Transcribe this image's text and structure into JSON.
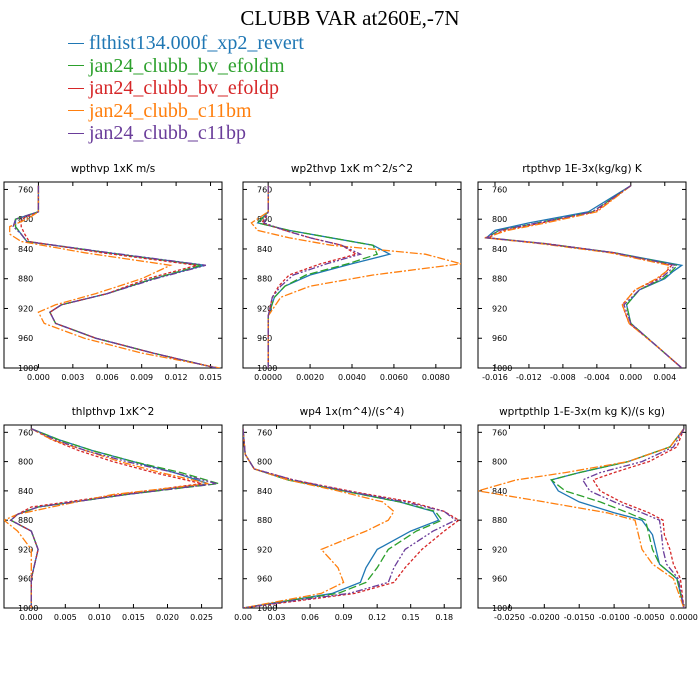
{
  "title": "CLUBB VAR at260E,-7N",
  "legend": [
    {
      "label": "flthist134.000f_xp2_revert",
      "color": "#1f77b4",
      "dash": "none"
    },
    {
      "label": "jan24_clubb_bv_efoldm",
      "color": "#2ca02c",
      "dash": "8,3"
    },
    {
      "label": "jan24_clubb_bv_efoldp",
      "color": "#d62728",
      "dash": "3,2"
    },
    {
      "label": "jan24_clubb_c11bm",
      "color": "#ff7f0e",
      "dash": "8,2,2,2"
    },
    {
      "label": "jan24_clubb_c11bp",
      "color": "#6a3d9a",
      "dash": "7,2,2,2,2,2"
    }
  ],
  "chart_data": [
    {
      "type": "line",
      "title": "wpthvp  1xK m/s",
      "xlim": [
        -0.003,
        0.016
      ],
      "ylim": [
        1000,
        750
      ],
      "xticks": [
        0.0,
        0.003,
        0.006,
        0.009,
        0.012,
        0.015
      ],
      "xticklabels": [
        "0.000",
        "0.003",
        "0.006",
        "0.009",
        "0.012",
        "0.015"
      ],
      "yticks": [
        760,
        800,
        840,
        880,
        920,
        960,
        1000
      ],
      "y": [
        755,
        790,
        800,
        810,
        820,
        830,
        845,
        862,
        880,
        900,
        915,
        925,
        940,
        960,
        980,
        1000
      ],
      "series": [
        {
          "name": "flthist134.000f_xp2_revert",
          "values": [
            0.0,
            0.0,
            -0.002,
            -0.002,
            -0.0015,
            -0.001,
            0.006,
            0.0145,
            0.01,
            0.006,
            0.002,
            0.001,
            0.0015,
            0.005,
            0.01,
            0.0155
          ]
        },
        {
          "name": "jan24_clubb_bv_efoldm",
          "values": [
            0.0,
            0.0,
            -0.002,
            -0.002,
            -0.0015,
            -0.001,
            0.006,
            0.0142,
            0.01,
            0.006,
            0.002,
            0.001,
            0.0015,
            0.005,
            0.01,
            0.0155
          ]
        },
        {
          "name": "jan24_clubb_bv_efoldp",
          "values": [
            0.0,
            0.0,
            -0.0015,
            -0.0015,
            -0.0012,
            -0.0008,
            0.0055,
            0.0138,
            0.0095,
            0.006,
            0.002,
            0.001,
            0.0015,
            0.005,
            0.01,
            0.0155
          ]
        },
        {
          "name": "jan24_clubb_c11bm",
          "values": [
            0.0,
            0.0,
            -0.001,
            -0.0025,
            -0.0025,
            -0.0015,
            0.004,
            0.0115,
            0.009,
            0.005,
            0.0015,
            0.0,
            0.0005,
            0.004,
            0.009,
            0.0158
          ]
        },
        {
          "name": "jan24_clubb_c11bp",
          "values": [
            0.0,
            0.0,
            -0.002,
            -0.0022,
            -0.0015,
            -0.001,
            0.0062,
            0.0146,
            0.0102,
            0.006,
            0.002,
            0.001,
            0.0015,
            0.005,
            0.01,
            0.0155
          ]
        }
      ]
    },
    {
      "type": "line",
      "title": "wp2thvp  1xK m^2/s^2",
      "xlim": [
        -0.0012,
        0.0092
      ],
      "ylim": [
        1000,
        750
      ],
      "xticks": [
        0.0,
        0.002,
        0.004,
        0.006,
        0.008
      ],
      "xticklabels": [
        "0.0000",
        "0.0020",
        "0.0040",
        "0.0060",
        "0.0080"
      ],
      "yticks": [
        760,
        800,
        840,
        880,
        920,
        960,
        1000
      ],
      "y": [
        755,
        790,
        805,
        815,
        825,
        835,
        847,
        860,
        875,
        890,
        905,
        930,
        960,
        1000
      ],
      "series": [
        {
          "name": "flthist134.000f_xp2_revert",
          "values": [
            0.0,
            0.0,
            -0.0005,
            0.001,
            0.003,
            0.005,
            0.0058,
            0.004,
            0.002,
            0.0008,
            0.0003,
            0.0,
            0.0,
            0.0
          ]
        },
        {
          "name": "jan24_clubb_bv_efoldm",
          "values": [
            0.0,
            0.0,
            -0.0005,
            0.001,
            0.003,
            0.005,
            0.0052,
            0.0038,
            0.0018,
            0.0008,
            0.0003,
            0.0,
            0.0,
            0.0
          ]
        },
        {
          "name": "jan24_clubb_bv_efoldp",
          "values": [
            0.0,
            0.0,
            -0.0003,
            0.0008,
            0.002,
            0.0035,
            0.0042,
            0.0025,
            0.001,
            0.0005,
            0.0002,
            0.0,
            0.0,
            0.0
          ]
        },
        {
          "name": "jan24_clubb_c11bm",
          "values": [
            0.0,
            0.0,
            -0.0008,
            -0.0005,
            0.001,
            0.003,
            0.0075,
            0.0092,
            0.005,
            0.002,
            0.0006,
            0.0,
            0.0,
            0.0
          ]
        },
        {
          "name": "jan24_clubb_c11bp",
          "values": [
            0.0,
            0.0,
            -0.0002,
            0.0008,
            0.002,
            0.0035,
            0.0044,
            0.0028,
            0.0012,
            0.0006,
            0.0002,
            0.0,
            0.0,
            0.0
          ]
        }
      ]
    },
    {
      "type": "line",
      "title": "rtpthvp  1E-3x(kg/kg) K",
      "xlim": [
        -0.018,
        0.0065
      ],
      "ylim": [
        1000,
        750
      ],
      "xticks": [
        -0.016,
        -0.012,
        -0.008,
        -0.004,
        0.0,
        0.004
      ],
      "xticklabels": [
        "-0.016",
        "-0.012",
        "-0.008",
        "-0.004",
        "0.000",
        "0.004"
      ],
      "yticks": [
        760,
        800,
        840,
        880,
        920,
        960,
        1000
      ],
      "y": [
        755,
        790,
        805,
        815,
        825,
        833,
        845,
        862,
        870,
        880,
        895,
        915,
        940,
        970,
        1000
      ],
      "series": [
        {
          "name": "flthist134.000f_xp2_revert",
          "values": [
            0.0,
            -0.005,
            -0.012,
            -0.016,
            -0.017,
            -0.01,
            -0.002,
            0.006,
            0.005,
            0.004,
            0.001,
            -0.0005,
            0.0,
            0.003,
            0.006
          ]
        },
        {
          "name": "jan24_clubb_bv_efoldm",
          "values": [
            0.0,
            -0.0045,
            -0.011,
            -0.0155,
            -0.017,
            -0.01,
            -0.002,
            0.0055,
            0.0048,
            0.0038,
            0.001,
            -0.0005,
            0.0,
            0.003,
            0.006
          ]
        },
        {
          "name": "jan24_clubb_bv_efoldp",
          "values": [
            0.0,
            -0.0042,
            -0.0105,
            -0.015,
            -0.0168,
            -0.0098,
            -0.002,
            0.0048,
            0.0042,
            0.0032,
            0.0005,
            -0.001,
            -0.0002,
            0.003,
            0.006
          ]
        },
        {
          "name": "jan24_clubb_c11bm",
          "values": [
            0.0,
            -0.004,
            -0.01,
            -0.0145,
            -0.0172,
            -0.0105,
            -0.0025,
            0.0045,
            0.0042,
            0.003,
            0.0005,
            -0.001,
            -0.0002,
            0.003,
            0.006
          ]
        },
        {
          "name": "jan24_clubb_c11bp",
          "values": [
            0.0,
            -0.0045,
            -0.011,
            -0.0155,
            -0.017,
            -0.01,
            -0.002,
            0.0052,
            0.0045,
            0.0035,
            0.001,
            -0.0008,
            0.0,
            0.003,
            0.006
          ]
        }
      ]
    },
    {
      "type": "line",
      "title": "thlpthvp  1xK^2",
      "xlim": [
        -0.004,
        0.028
      ],
      "ylim": [
        1000,
        750
      ],
      "xticks": [
        0.0,
        0.005,
        0.01,
        0.015,
        0.02,
        0.025
      ],
      "xticklabels": [
        "0.000",
        "0.005",
        "0.010",
        "0.015",
        "0.020",
        "0.025"
      ],
      "yticks": [
        760,
        800,
        840,
        880,
        920,
        960,
        1000
      ],
      "y": [
        755,
        770,
        785,
        800,
        815,
        830,
        845,
        862,
        872,
        880,
        895,
        920,
        960,
        1000
      ],
      "series": [
        {
          "name": "flthist134.000f_xp2_revert",
          "values": [
            0.0,
            0.004,
            0.009,
            0.015,
            0.021,
            0.026,
            0.014,
            0.001,
            -0.002,
            -0.003,
            0.0,
            0.001,
            0.0,
            0.0
          ]
        },
        {
          "name": "jan24_clubb_bv_efoldm",
          "values": [
            0.0,
            0.004,
            0.009,
            0.015,
            0.022,
            0.0275,
            0.014,
            0.001,
            -0.002,
            -0.003,
            0.0,
            0.001,
            0.0,
            0.0
          ]
        },
        {
          "name": "jan24_clubb_bv_efoldp",
          "values": [
            0.0,
            0.003,
            0.007,
            0.012,
            0.018,
            0.025,
            0.013,
            0.0,
            -0.002,
            -0.003,
            0.0,
            0.001,
            0.0,
            0.0
          ]
        },
        {
          "name": "jan24_clubb_c11bm",
          "values": [
            0.0,
            0.003,
            0.008,
            0.013,
            0.019,
            0.026,
            0.012,
            0.003,
            -0.002,
            -0.004,
            -0.002,
            0.0,
            0.0,
            0.0
          ]
        },
        {
          "name": "jan24_clubb_c11bp",
          "values": [
            0.0,
            0.0035,
            0.008,
            0.014,
            0.021,
            0.0272,
            0.014,
            0.001,
            -0.002,
            -0.003,
            0.0,
            0.001,
            0.0,
            0.0
          ]
        }
      ]
    },
    {
      "type": "line",
      "title": "wp4  1x(m^4)/(s^4)",
      "xlim": [
        0.0,
        0.195
      ],
      "ylim": [
        1000,
        750
      ],
      "xticks": [
        0.0,
        0.03,
        0.06,
        0.09,
        0.12,
        0.15,
        0.18
      ],
      "xticklabels": [
        "0.00",
        "0.03",
        "0.06",
        "0.09",
        "0.12",
        "0.15",
        "0.18"
      ],
      "yticks": [
        760,
        800,
        840,
        880,
        920,
        960,
        1000
      ],
      "y": [
        755,
        790,
        810,
        825,
        840,
        855,
        868,
        880,
        895,
        920,
        945,
        965,
        980,
        990,
        1000
      ],
      "series": [
        {
          "name": "flthist134.000f_xp2_revert",
          "values": [
            0.0,
            0.002,
            0.01,
            0.04,
            0.09,
            0.14,
            0.17,
            0.175,
            0.15,
            0.12,
            0.11,
            0.105,
            0.08,
            0.04,
            0.0
          ]
        },
        {
          "name": "jan24_clubb_bv_efoldm",
          "values": [
            0.0,
            0.002,
            0.01,
            0.04,
            0.09,
            0.14,
            0.172,
            0.178,
            0.155,
            0.13,
            0.12,
            0.11,
            0.085,
            0.04,
            0.0
          ]
        },
        {
          "name": "jan24_clubb_bv_efoldp",
          "values": [
            0.0,
            0.002,
            0.01,
            0.045,
            0.095,
            0.15,
            0.18,
            0.193,
            0.18,
            0.16,
            0.145,
            0.135,
            0.1,
            0.05,
            0.0
          ]
        },
        {
          "name": "jan24_clubb_c11bm",
          "values": [
            0.0,
            0.002,
            0.01,
            0.04,
            0.085,
            0.125,
            0.135,
            0.13,
            0.11,
            0.07,
            0.085,
            0.09,
            0.07,
            0.035,
            0.0
          ]
        },
        {
          "name": "jan24_clubb_c11bp",
          "values": [
            0.0,
            0.002,
            0.01,
            0.045,
            0.092,
            0.145,
            0.18,
            0.19,
            0.17,
            0.145,
            0.135,
            0.13,
            0.095,
            0.045,
            0.0
          ]
        }
      ]
    },
    {
      "type": "line",
      "title": "wprtpthlp  1-E-3x(m kg K)/(s kg)",
      "xlim": [
        -0.0295,
        0.0003
      ],
      "ylim": [
        1000,
        750
      ],
      "xticks": [
        -0.025,
        -0.02,
        -0.015,
        -0.01,
        -0.005,
        0.0
      ],
      "xticklabels": [
        "-0.0250",
        "-0.0200",
        "-0.0150",
        "-0.0100",
        "-0.0050",
        "0.0000"
      ],
      "yticks": [
        760,
        800,
        840,
        880,
        920,
        960,
        1000
      ],
      "y": [
        755,
        780,
        800,
        815,
        825,
        840,
        855,
        870,
        880,
        900,
        920,
        940,
        960,
        1000
      ],
      "series": [
        {
          "name": "flthist134.000f_xp2_revert",
          "values": [
            0.0,
            -0.002,
            -0.008,
            -0.015,
            -0.019,
            -0.018,
            -0.015,
            -0.01,
            -0.006,
            -0.0045,
            -0.004,
            -0.0035,
            -0.001,
            0.0
          ]
        },
        {
          "name": "jan24_clubb_bv_efoldm",
          "values": [
            0.0,
            -0.002,
            -0.008,
            -0.015,
            -0.019,
            -0.017,
            -0.012,
            -0.008,
            -0.0055,
            -0.005,
            -0.0045,
            -0.0035,
            -0.001,
            0.0
          ]
        },
        {
          "name": "jan24_clubb_bv_efoldp",
          "values": [
            0.0,
            -0.001,
            -0.005,
            -0.01,
            -0.013,
            -0.012,
            -0.009,
            -0.005,
            -0.003,
            -0.0028,
            -0.002,
            -0.0015,
            -0.0005,
            0.0
          ]
        },
        {
          "name": "jan24_clubb_c11bm",
          "values": [
            0.0,
            -0.002,
            -0.008,
            -0.017,
            -0.024,
            -0.0295,
            -0.02,
            -0.011,
            -0.007,
            -0.0065,
            -0.006,
            -0.0045,
            -0.0015,
            0.0
          ]
        },
        {
          "name": "jan24_clubb_c11bp",
          "values": [
            0.0,
            -0.0015,
            -0.006,
            -0.012,
            -0.0145,
            -0.0135,
            -0.01,
            -0.006,
            -0.0035,
            -0.0032,
            -0.003,
            -0.0025,
            -0.0008,
            0.0
          ]
        }
      ]
    }
  ]
}
